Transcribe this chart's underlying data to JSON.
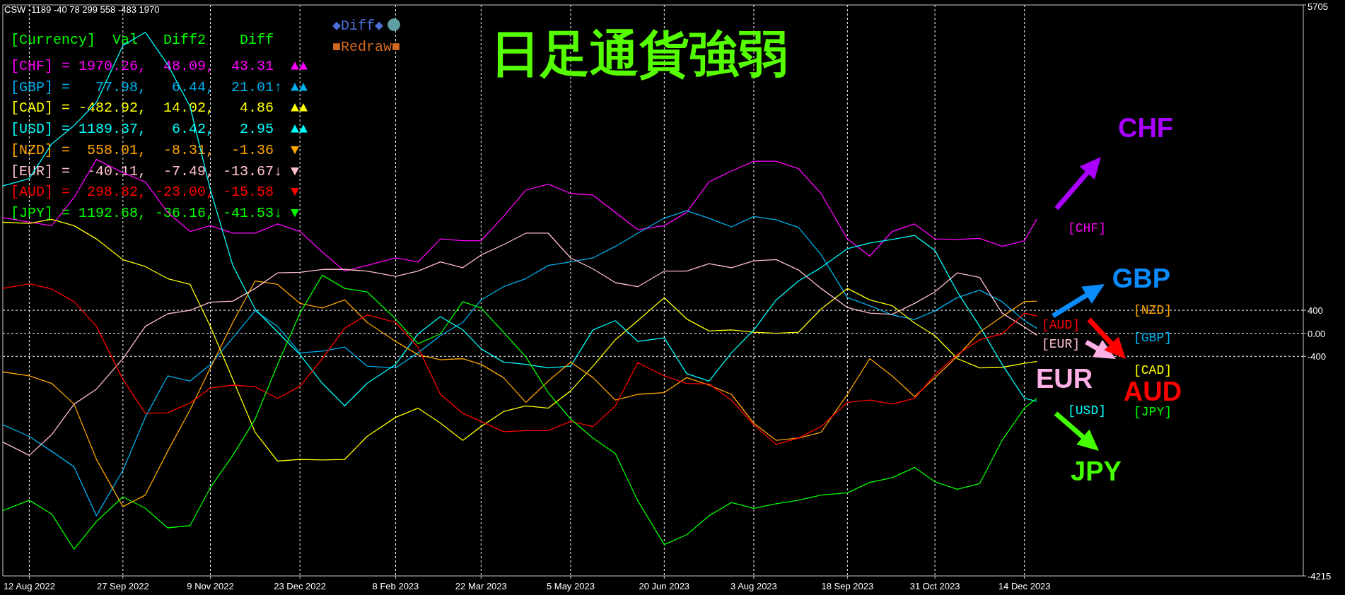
{
  "chart_data": {
    "type": "line",
    "title": "日足通貨強弱",
    "x": [
      "2022-07-30",
      "2022-08-12",
      "2022-08-23",
      "2022-09-03",
      "2022-09-14",
      "2022-09-27",
      "2022-10-08",
      "2022-10-19",
      "2022-10-30",
      "2022-11-09",
      "2022-11-20",
      "2022-12-01",
      "2022-12-12",
      "2022-12-23",
      "2023-01-03",
      "2023-01-14",
      "2023-01-25",
      "2023-02-08",
      "2023-02-19",
      "2023-03-02",
      "2023-03-13",
      "2023-03-22",
      "2023-04-02",
      "2023-04-13",
      "2023-04-24",
      "2023-05-05",
      "2023-05-16",
      "2023-05-27",
      "2023-06-07",
      "2023-06-20",
      "2023-07-01",
      "2023-07-12",
      "2023-07-23",
      "2023-08-03",
      "2023-08-14",
      "2023-08-25",
      "2023-09-05",
      "2023-09-18",
      "2023-09-29",
      "2023-10-10",
      "2023-10-21",
      "2023-10-31",
      "2023-11-11",
      "2023-11-22",
      "2023-12-03",
      "2023-12-14",
      "2023-12-20"
    ],
    "series": [
      {
        "color": "#ff00ff",
        "values": [
          2010,
          1930,
          1870,
          2360,
          3020,
          2790,
          2630,
          2100,
          1770,
          1870,
          1740,
          1740,
          1900,
          1770,
          1410,
          1080,
          1180,
          1310,
          1240,
          1640,
          1610,
          1610,
          2030,
          2490,
          2590,
          2430,
          2400,
          2100,
          1800,
          1870,
          2100,
          2630,
          2820,
          2990,
          2990,
          2860,
          2430,
          1640,
          1340,
          1770,
          1900,
          1640,
          1630,
          1650,
          1510,
          1610,
          1980
        ]
      },
      {
        "color": "#00b0f0",
        "values": [
          -1590,
          -1790,
          -2050,
          -2320,
          -3170,
          -2380,
          -1460,
          -740,
          -830,
          -540,
          -80,
          390,
          120,
          -340,
          -310,
          -240,
          -570,
          -600,
          -340,
          -40,
          190,
          580,
          810,
          950,
          1180,
          1240,
          1310,
          1510,
          1740,
          2000,
          2130,
          2000,
          1850,
          2030,
          1970,
          1840,
          1370,
          620,
          480,
          320,
          240,
          390,
          620,
          750,
          550,
          220,
          90
        ]
      },
      {
        "color": "#ffff00",
        "values": [
          1930,
          1910,
          1980,
          1870,
          1640,
          1280,
          1160,
          950,
          850,
          120,
          -800,
          -1720,
          -2220,
          -2190,
          -2200,
          -2190,
          -1790,
          -1460,
          -1300,
          -1560,
          -1860,
          -1620,
          -1360,
          -1260,
          -1300,
          -1000,
          -570,
          -110,
          220,
          620,
          250,
          40,
          60,
          20,
          0,
          20,
          420,
          780,
          580,
          480,
          180,
          -40,
          -440,
          -600,
          -590,
          -520,
          -490
        ]
      },
      {
        "color": "#00ffff",
        "values": [
          2560,
          2690,
          3290,
          3610,
          4010,
          5000,
          5230,
          4670,
          3940,
          2490,
          1180,
          420,
          20,
          -370,
          -870,
          -1260,
          -870,
          -540,
          -10,
          290,
          60,
          -270,
          -500,
          -540,
          -600,
          -570,
          60,
          220,
          -140,
          -80,
          -700,
          -830,
          -340,
          60,
          580,
          910,
          1140,
          1470,
          1570,
          1630,
          1700,
          1440,
          720,
          120,
          -540,
          -1130,
          -1180
        ]
      },
      {
        "color": "#ffa500",
        "values": [
          -670,
          -740,
          -870,
          -1230,
          -2190,
          -3010,
          -2810,
          -2050,
          -1330,
          -600,
          190,
          910,
          850,
          520,
          440,
          580,
          190,
          -140,
          -370,
          -460,
          -440,
          -540,
          -770,
          -1200,
          -830,
          -500,
          -770,
          -1160,
          -1060,
          -1030,
          -770,
          -900,
          -1060,
          -1560,
          -1860,
          -1820,
          -1720,
          -1060,
          -440,
          -740,
          -1100,
          -770,
          -400,
          20,
          290,
          550,
          560
        ]
      },
      {
        "color": "#ffc0cb",
        "values": [
          -1890,
          -2120,
          -1760,
          -1230,
          -970,
          -440,
          120,
          340,
          400,
          540,
          560,
          780,
          1050,
          1060,
          1110,
          1110,
          1080,
          990,
          1080,
          1240,
          1140,
          1360,
          1540,
          1740,
          1740,
          1310,
          1120,
          880,
          810,
          1080,
          1080,
          1210,
          1140,
          1260,
          1280,
          1100,
          780,
          450,
          350,
          330,
          520,
          720,
          1050,
          970,
          350,
          110,
          -30
        ]
      },
      {
        "color": "#ff0000",
        "values": [
          780,
          860,
          770,
          550,
          120,
          -800,
          -1390,
          -1380,
          -1210,
          -950,
          -900,
          -930,
          -1130,
          -920,
          -440,
          90,
          320,
          190,
          -240,
          -1060,
          -1390,
          -1530,
          -1710,
          -1690,
          -1690,
          -1530,
          -1620,
          -1260,
          -510,
          -740,
          -870,
          -880,
          -1160,
          -1590,
          -1930,
          -1820,
          -1620,
          -1200,
          -1160,
          -1230,
          -1130,
          -720,
          -370,
          -110,
          -10,
          350,
          300
        ]
      },
      {
        "color": "#00ff00",
        "values": [
          -3080,
          -2900,
          -3140,
          -3750,
          -3270,
          -2840,
          -3040,
          -3380,
          -3340,
          -2680,
          -2120,
          -1490,
          -540,
          350,
          1010,
          780,
          720,
          250,
          -180,
          -10,
          550,
          440,
          20,
          -410,
          -1030,
          -1490,
          -1820,
          -2090,
          -2910,
          -3670,
          -3500,
          -3170,
          -2940,
          -3040,
          -2960,
          -2900,
          -2810,
          -2770,
          -2590,
          -2510,
          -2330,
          -2580,
          -2710,
          -2610,
          -1860,
          -1300,
          -1130
        ]
      }
    ],
    "xlim": [
      "2022-07-30",
      "2024-04-29"
    ],
    "xticks": [
      {
        "value": "2022-08-12",
        "label": "12 Aug 2022"
      },
      {
        "value": "2022-09-27",
        "label": "27 Sep 2022"
      },
      {
        "value": "2022-11-09",
        "label": "9 Nov 2022"
      },
      {
        "value": "2022-12-23",
        "label": "23 Dec 2022"
      },
      {
        "value": "2023-02-08",
        "label": "8 Feb 2023"
      },
      {
        "value": "2023-03-22",
        "label": "22 Mar 2023"
      },
      {
        "value": "2023-05-05",
        "label": "5 May 2023"
      },
      {
        "value": "2023-06-20",
        "label": "20 Jun 2023"
      },
      {
        "value": "2023-08-03",
        "label": "3 Aug 2023"
      },
      {
        "value": "2023-09-18",
        "label": "18 Sep 2023"
      },
      {
        "value": "2023-10-31",
        "label": "31 Oct 2023"
      },
      {
        "value": "2023-12-14",
        "label": "14 Dec 2023"
      }
    ],
    "ylim": [
      -4215,
      5705
    ],
    "yticks": [
      5705,
      400,
      {
        "value": 0,
        "label": "0.00"
      },
      -400,
      -4215
    ],
    "grid": true,
    "annotations": [
      "CSW -1189 -40 78 299 558 -483 1970",
      "◆Diff◆",
      "■Redraw■",
      "[Currency]  Val   Diff2    Diff",
      "[CHF] = 1970.26,  48.09,  43.31  ▲▲",
      "[GBP] =   77.98,   6.44,  21.01↑ ▲▲",
      "[CAD] = -482.92,  14.02,   4.86  ▲▲",
      "[USD] = 1189.37,   6.42,   2.95  ▲▲",
      "[NZD] =  558.01,  -8.31,  -1.36  ▼",
      "[EUR] =  -40.11,  -7.49, -13.67↓ ▼",
      "[AUD] =  298.82, -23.00, -15.58  ▼",
      "[JPY] = 1192.68, -36.16, -41.53↓ ▼",
      "[CHF]",
      "[NZD]",
      "[AUD]",
      "[GBP]",
      "[EUR]",
      "[CAD]",
      "[USD]",
      "[JPY]",
      "CHF",
      "GBP",
      "EUR",
      "AUD",
      "JPY"
    ]
  }
}
